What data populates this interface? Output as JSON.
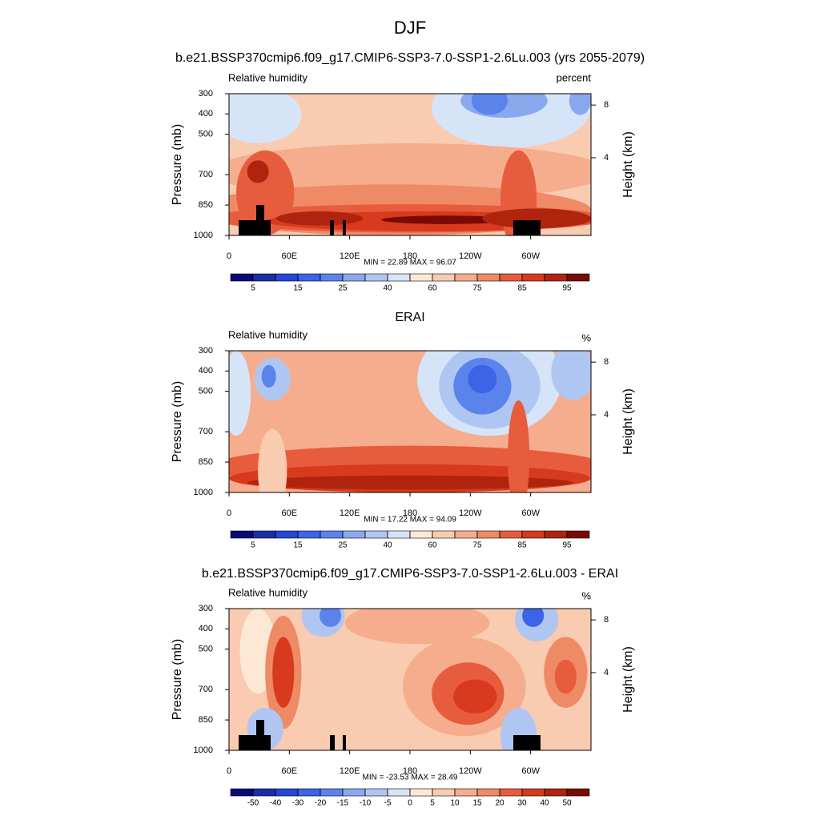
{
  "title": "DJF",
  "chart_data": [
    {
      "type": "contour",
      "title": "b.e21.BSSP370cmip6.f09_g17.CMIP6-SSP3-7.0-SSP1-2.6Lu.003 (yrs 2055-2079)",
      "left_label": "Relative humidity",
      "right_label": "percent",
      "ylabel": "Pressure (mb)",
      "y2label": "Height (km)",
      "xlim": [
        0,
        360
      ],
      "xticks": [
        0,
        {
          "value": 60,
          "label": "60E"
        },
        {
          "value": 120,
          "label": "120E"
        },
        180,
        {
          "value": 240,
          "label": "120W"
        },
        {
          "value": 300,
          "label": "60W"
        }
      ],
      "ylim": [
        1000,
        300
      ],
      "yticks": [
        300,
        400,
        500,
        700,
        850,
        1000
      ],
      "y2ticks": [
        4,
        8
      ],
      "stats": "MIN =  22.89  MAX =  96.07",
      "colorbar": {
        "levels": [
          5,
          10,
          15,
          20,
          25,
          30,
          40,
          50,
          60,
          70,
          75,
          80,
          85,
          90,
          95
        ],
        "label_stride": 2,
        "colors": [
          "#0a0a78",
          "#1a2ea8",
          "#2447d6",
          "#3d63e6",
          "#5a84ec",
          "#8aa8ee",
          "#b0c6f2",
          "#d6e4f8",
          "#fde8d6",
          "#f9cbb0",
          "#f5ad8e",
          "#ef8a66",
          "#e85c3e",
          "#d83a1e",
          "#b0240e",
          "#7a0a04"
        ]
      }
    },
    {
      "type": "contour",
      "title": "ERAI",
      "left_label": "Relative humidity",
      "right_label": "%",
      "ylabel": "Pressure (mb)",
      "y2label": "Height (km)",
      "xlim": [
        0,
        360
      ],
      "xticks": [
        0,
        {
          "value": 60,
          "label": "60E"
        },
        {
          "value": 120,
          "label": "120E"
        },
        180,
        {
          "value": 240,
          "label": "120W"
        },
        {
          "value": 300,
          "label": "60W"
        }
      ],
      "ylim": [
        1000,
        300
      ],
      "yticks": [
        300,
        400,
        500,
        700,
        850,
        1000
      ],
      "y2ticks": [
        4,
        8
      ],
      "stats": "MIN =  17.22  MAX =  94.09",
      "colorbar": {
        "levels": [
          5,
          10,
          15,
          20,
          25,
          30,
          40,
          50,
          60,
          70,
          75,
          80,
          85,
          90,
          95
        ],
        "label_stride": 2,
        "colors": [
          "#0a0a78",
          "#1a2ea8",
          "#2447d6",
          "#3d63e6",
          "#5a84ec",
          "#8aa8ee",
          "#b0c6f2",
          "#d6e4f8",
          "#fde8d6",
          "#f9cbb0",
          "#f5ad8e",
          "#ef8a66",
          "#e85c3e",
          "#d83a1e",
          "#b0240e",
          "#7a0a04"
        ]
      }
    },
    {
      "type": "contour",
      "title": "b.e21.BSSP370cmip6.f09_g17.CMIP6-SSP3-7.0-SSP1-2.6Lu.003 - ERAI",
      "left_label": "Relative humidity",
      "right_label": "%",
      "ylabel": "Pressure (mb)",
      "y2label": "Height (km)",
      "xlim": [
        0,
        360
      ],
      "xticks": [
        0,
        {
          "value": 60,
          "label": "60E"
        },
        {
          "value": 120,
          "label": "120E"
        },
        180,
        {
          "value": 240,
          "label": "120W"
        },
        {
          "value": 300,
          "label": "60W"
        }
      ],
      "ylim": [
        1000,
        300
      ],
      "yticks": [
        300,
        400,
        500,
        700,
        850,
        1000
      ],
      "y2ticks": [
        4,
        8
      ],
      "stats": "MIN = -23.53  MAX =  28.49",
      "colorbar": {
        "levels": [
          -50,
          -40,
          -30,
          -20,
          -15,
          -10,
          -5,
          0,
          5,
          10,
          15,
          20,
          30,
          40,
          50
        ],
        "label_stride": 1,
        "colors": [
          "#0a0a78",
          "#1a2ea8",
          "#2447d6",
          "#3d63e6",
          "#5a84ec",
          "#8aa8ee",
          "#b0c6f2",
          "#d6e4f8",
          "#fde8d6",
          "#f9cbb0",
          "#f5ad8e",
          "#ef8a66",
          "#e85c3e",
          "#d83a1e",
          "#b0240e",
          "#7a0a04"
        ]
      }
    }
  ]
}
